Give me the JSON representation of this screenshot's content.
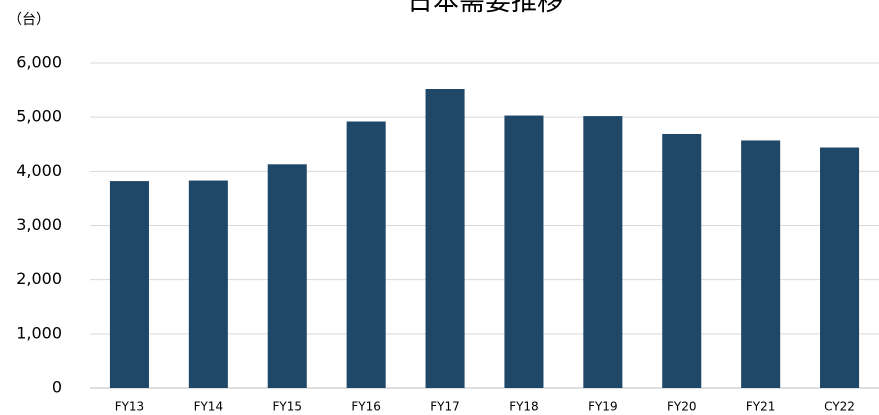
{
  "chart_data": {
    "type": "bar",
    "title": "日本需要推移",
    "unit_label": "（台）",
    "categories": [
      "FY13",
      "FY14",
      "FY15",
      "FY16",
      "FY17",
      "FY18",
      "FY19",
      "FY20",
      "FY21",
      "CY22"
    ],
    "series": [
      {
        "values": [
          3820,
          3830,
          4130,
          4920,
          5520,
          5030,
          5020,
          4690,
          4570,
          4440
        ]
      }
    ],
    "ylim": [
      0,
      6000
    ],
    "yticks": [
      0,
      1000,
      2000,
      3000,
      4000,
      5000,
      6000
    ],
    "ytick_labels": [
      "0",
      "1,000",
      "2,000",
      "3,000",
      "4,000",
      "5,000",
      "6,000"
    ],
    "grid": true,
    "bar_color": "#1f4868"
  }
}
